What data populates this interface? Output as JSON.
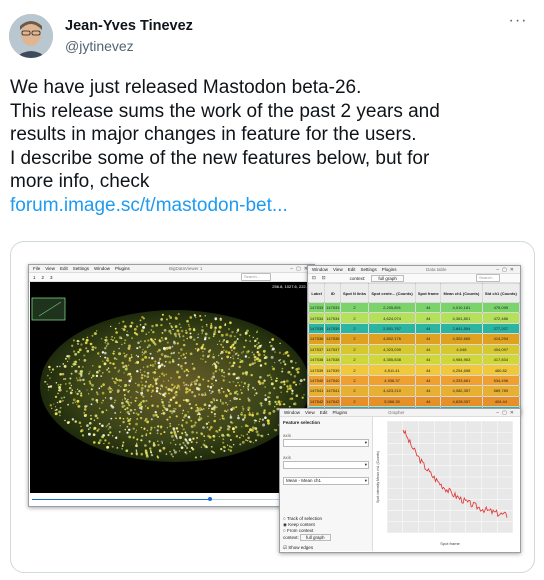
{
  "author": {
    "name": "Jean-Yves Tinevez",
    "handle": "@jytinevez"
  },
  "tweet": {
    "lines": [
      "We have just released Mastodon beta-26.",
      "This release sums the work of the past 2 years and",
      "results in major changes in feature for the users.",
      "I describe some of the new features below, but for",
      "more info, check"
    ],
    "link_text": "forum.image.sc/t/mastodon-bet..."
  },
  "screenshot": {
    "bdv": {
      "menu": [
        "File",
        "View",
        "Edit",
        "Settings",
        "Window",
        "Plugins"
      ],
      "title": "BigDataViewer 1",
      "toolbar": [
        "1",
        "2",
        "3"
      ],
      "search_placeholder": "Search...",
      "coords": "256.8, 1027.6, 222.1",
      "slider_fraction": 0.64
    },
    "table": {
      "menu": [
        "Window",
        "View",
        "Edit",
        "Settings",
        "Plugins"
      ],
      "title": "Data table",
      "context_label": "context:",
      "context_value": "full graph",
      "search_placeholder": "Search...",
      "headers": [
        "Label",
        "ID",
        "Spot N links",
        "Spot cente... (Counts)",
        "Spot frame",
        "Mean ch1 (Counts)",
        "Std ch1 (Counts)"
      ],
      "rows": [
        [
          "147533",
          "147533",
          "2",
          "2,205,891",
          "44",
          "4,010,181",
          "475,095"
        ],
        [
          "147534",
          "147534",
          "2",
          "4,624,074",
          "44",
          "4,361,801",
          "472,486"
        ],
        [
          "147535",
          "147535",
          "2",
          "2,501,767",
          "44",
          "2,841,554",
          "277,207"
        ],
        [
          "147536",
          "147536",
          "2",
          "4,802,176",
          "44",
          "4,302,665",
          "414,294"
        ],
        [
          "147537",
          "147537",
          "2",
          "4,323,039",
          "44",
          "4,048",
          "404,097"
        ],
        [
          "147538",
          "147538",
          "2",
          "4,355,838",
          "44",
          "4,984,963",
          "417,834"
        ],
        [
          "147539",
          "147539",
          "2",
          "4,511.41",
          "44",
          "4,254,658",
          "460.82"
        ],
        [
          "147540",
          "147540",
          "2",
          "4,936.37",
          "44",
          "4,333,661",
          "534,496"
        ],
        [
          "147541",
          "147541",
          "2",
          "4,423,210",
          "44",
          "4,082,357",
          "589,789"
        ],
        [
          "147542",
          "147542",
          "2",
          "5,066.30",
          "44",
          "4,628,057",
          "404.44"
        ],
        [
          "147543",
          "147543",
          "2",
          "2,167,765",
          "44",
          "2,320,644",
          "258,789"
        ]
      ],
      "row_colors": [
        "#7bd36c",
        "#b4e05a",
        "#2bb5a0",
        "#e0a020",
        "#d8c830",
        "#cfd838",
        "#f0c83a",
        "#f0a030",
        "#e8b032",
        "#e88f28",
        "#35c2b0"
      ]
    },
    "grapher": {
      "menu": [
        "Window",
        "View",
        "Edit",
        "Plugins"
      ],
      "title": "Grapher",
      "panel_title": "Feature selection",
      "field_labels": [
        "axis",
        "axis"
      ],
      "select_value": "Mean - Mean ch1",
      "radio_options": [
        "Track of selection",
        "Keep content",
        "From context"
      ],
      "context_label": "context:",
      "context_value": "full graph",
      "checkbox_label": "Show edges",
      "x_label": "Spot frame",
      "y_label": "Spot intensity Mean ch1 (Counts)"
    }
  }
}
